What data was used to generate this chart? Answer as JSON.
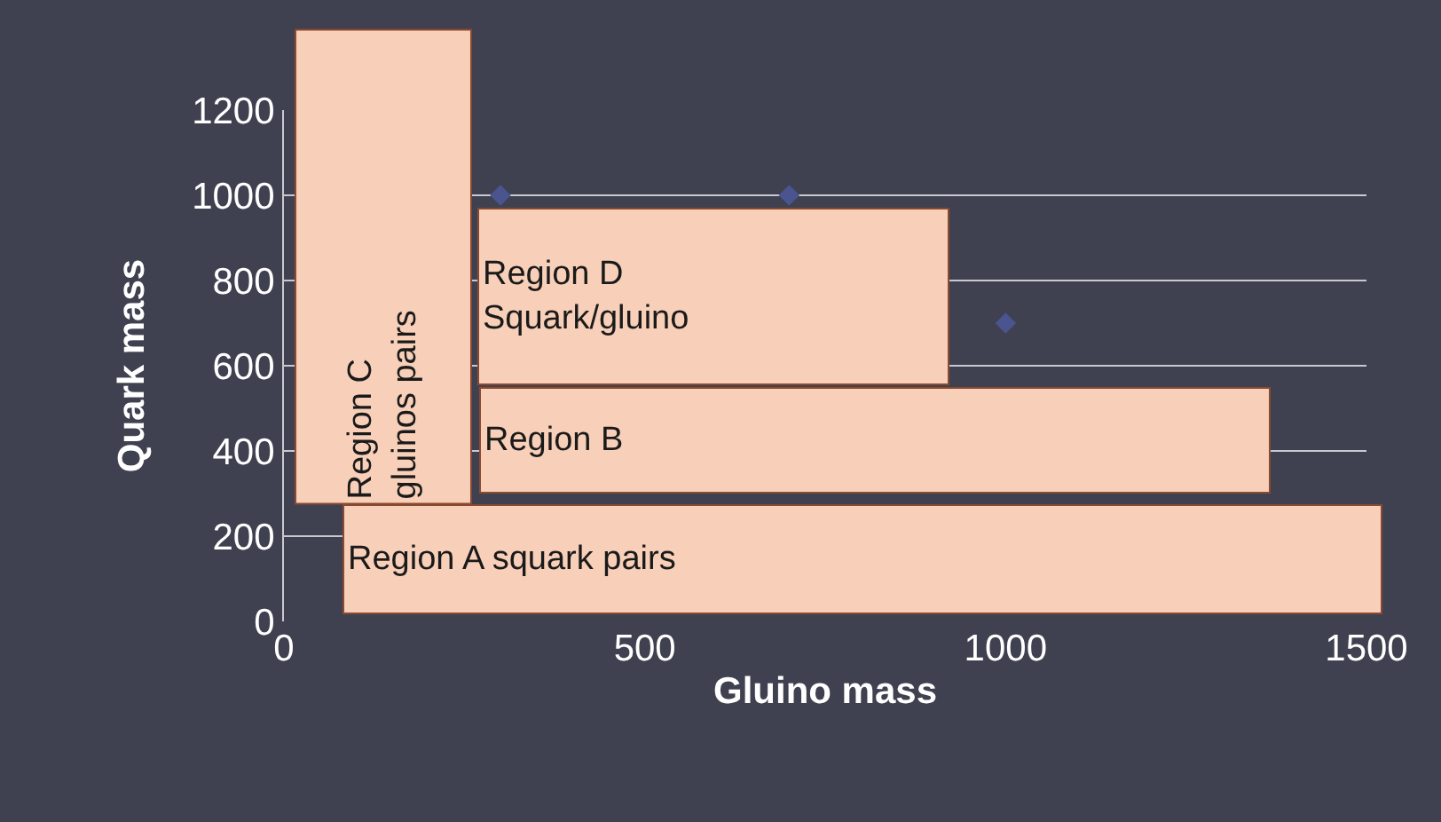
{
  "chart_data": {
    "type": "scatter",
    "xlabel": "Gluino mass",
    "ylabel": "Quark mass",
    "x": [
      300,
      700,
      1000
    ],
    "series": [
      {
        "color": "#4a5590",
        "values": [
          1000,
          1000,
          700
        ]
      }
    ],
    "marker": "diamond",
    "xlim": [
      0,
      1500
    ],
    "xticks": [
      0,
      500,
      1000,
      1500
    ],
    "ylim": [
      0,
      1200
    ],
    "yticks": [
      0,
      200,
      400,
      600,
      800,
      1000,
      1200
    ],
    "grid": "y",
    "legend": false,
    "annotations": [
      "Region A squark pairs",
      "Region B",
      "Region D\nSquark/gluino",
      "Region C\ngluinos pairs"
    ]
  }
}
